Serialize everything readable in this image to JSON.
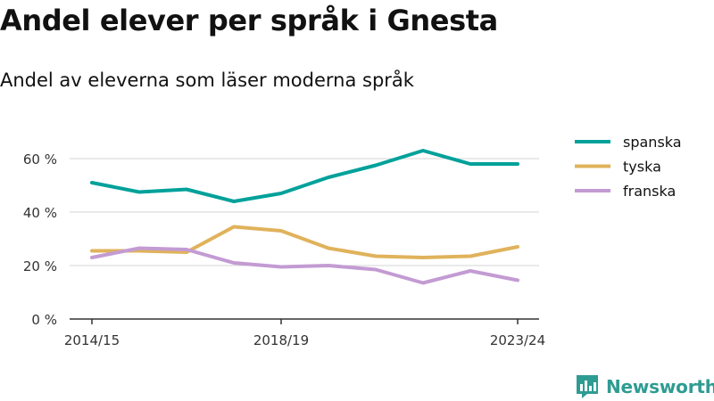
{
  "title": "Andel elever per språk i Gnesta",
  "subtitle": "Andel av eleverna som läser moderna språk",
  "brand": {
    "name": "Newsworthy",
    "icon": "newsworthy-logo-icon",
    "color": "#2e9c92"
  },
  "chart_data": {
    "type": "line",
    "title": "Andel elever per språk i Gnesta",
    "subtitle": "Andel av eleverna som läser moderna språk",
    "xlabel": "",
    "ylabel": "",
    "x": [
      "2014/15",
      "2015/16",
      "2016/17",
      "2017/18",
      "2018/19",
      "2019/20",
      "2020/21",
      "2021/22",
      "2022/23",
      "2023/24"
    ],
    "x_tick_labels": [
      "2014/15",
      "2018/19",
      "2023/24"
    ],
    "ylim": [
      0,
      70
    ],
    "y_ticks": [
      0,
      20,
      40,
      60
    ],
    "y_tick_labels": [
      "0 %",
      "20 %",
      "40 %",
      "60 %"
    ],
    "grid": true,
    "legend_position": "right",
    "series": [
      {
        "name": "spanska",
        "color": "#00a19a",
        "values": [
          51,
          47.5,
          48.5,
          44,
          47,
          53,
          57.5,
          63,
          58,
          58
        ]
      },
      {
        "name": "tyska",
        "color": "#e0b25b",
        "values": [
          25.5,
          25.5,
          25,
          34.5,
          33,
          26.5,
          23.5,
          23,
          23.5,
          27
        ]
      },
      {
        "name": "franska",
        "color": "#c39bd3",
        "values": [
          23,
          26.5,
          26,
          21,
          19.5,
          20,
          18.5,
          13.5,
          18,
          14.5
        ]
      }
    ]
  }
}
